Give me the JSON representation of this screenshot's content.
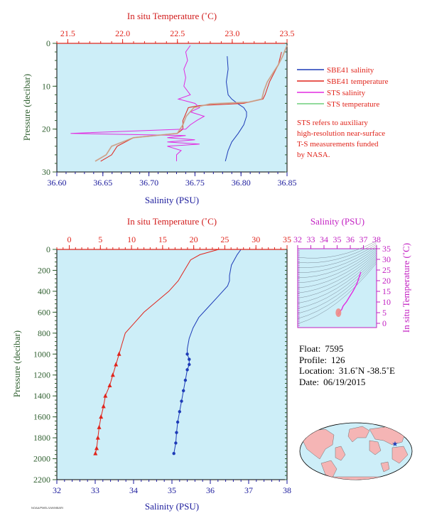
{
  "colors": {
    "plot_bg": "#cdeef8",
    "red": "#e0241b",
    "blue": "#1d3bb7",
    "magenta": "#e22be0",
    "green": "#6fcf7c",
    "pink": "#f08a86",
    "dark_blue_text": "#1a1a9c",
    "dark_red_text": "#d11b1b",
    "green_text": "#2f5f2f"
  },
  "chart_data": [
    {
      "id": "top",
      "type": "line",
      "title": "In situ Temperature (˚C)",
      "xlabel": "Salinity (PSU)",
      "ylabel": "Pressure (decibar)",
      "xlim_salinity": [
        36.6,
        36.85
      ],
      "xlim_temperature": [
        21.4,
        23.5
      ],
      "ylim": [
        30,
        0
      ],
      "sal_ticks": [
        "36.60",
        "36.65",
        "36.70",
        "36.75",
        "36.80",
        "36.85"
      ],
      "temp_ticks": [
        "21.5",
        "22.0",
        "22.5",
        "23.0",
        "23.5"
      ],
      "p_ticks": [
        "0",
        "10",
        "20",
        "30"
      ],
      "legend": [
        {
          "label": "SBE41 salinity",
          "color": "#1d3bb7"
        },
        {
          "label": "SBE41 temperature",
          "color": "#e0241b"
        },
        {
          "label": "STS salinity",
          "color": "#e22be0"
        },
        {
          "label": "STS temperature",
          "color": "#6fcf7c"
        }
      ],
      "note": [
        "STS refers to auxiliary",
        "high-resolution near-surface",
        "T-S measurements funded",
        "by NASA."
      ],
      "series": [
        {
          "name": "SBE41 salinity",
          "axis": "salinity",
          "points": [
            [
              36.785,
              3
            ],
            [
              36.786,
              6
            ],
            [
              36.784,
              9
            ],
            [
              36.786,
              12
            ],
            [
              36.79,
              13
            ],
            [
              36.796,
              14
            ],
            [
              36.803,
              15
            ],
            [
              36.806,
              16
            ],
            [
              36.806,
              17
            ],
            [
              36.803,
              19
            ],
            [
              36.8,
              20
            ],
            [
              36.797,
              21
            ],
            [
              36.79,
              23
            ],
            [
              36.786,
              25
            ],
            [
              36.783,
              27.5
            ]
          ]
        },
        {
          "name": "SBE41 temperature",
          "axis": "temperature",
          "points": [
            [
              23.45,
              2
            ],
            [
              23.42,
              5
            ],
            [
              23.38,
              7
            ],
            [
              23.34,
              9
            ],
            [
              23.3,
              12
            ],
            [
              23.28,
              13
            ],
            [
              23.1,
              14
            ],
            [
              22.7,
              14.5
            ],
            [
              22.6,
              15
            ],
            [
              22.55,
              18
            ],
            [
              22.55,
              20
            ],
            [
              22.5,
              21
            ],
            [
              22.1,
              22
            ],
            [
              21.95,
              24
            ],
            [
              21.9,
              26
            ],
            [
              21.8,
              27.5
            ]
          ]
        },
        {
          "name": "STS salinity",
          "axis": "salinity",
          "points": [
            [
              36.745,
              0.5
            ],
            [
              36.74,
              2
            ],
            [
              36.742,
              4
            ],
            [
              36.738,
              6
            ],
            [
              36.74,
              8
            ],
            [
              36.738,
              10
            ],
            [
              36.745,
              12
            ],
            [
              36.732,
              13
            ],
            [
              36.75,
              14
            ],
            [
              36.755,
              15
            ],
            [
              36.745,
              16
            ],
            [
              36.76,
              17
            ],
            [
              36.752,
              18
            ],
            [
              36.745,
              19
            ],
            [
              36.74,
              20
            ],
            [
              36.615,
              21
            ],
            [
              36.74,
              21.5
            ],
            [
              36.72,
              22
            ],
            [
              36.75,
              22.5
            ],
            [
              36.72,
              23
            ],
            [
              36.755,
              23.5
            ],
            [
              36.72,
              24
            ],
            [
              36.735,
              25
            ],
            [
              36.73,
              26
            ],
            [
              36.73,
              27.5
            ]
          ]
        },
        {
          "name": "STS temperature",
          "axis": "temperature",
          "points": [
            [
              23.5,
              0.5
            ],
            [
              23.46,
              3
            ],
            [
              23.42,
              5
            ],
            [
              23.37,
              7
            ],
            [
              23.32,
              9
            ],
            [
              23.29,
              11
            ],
            [
              23.27,
              13
            ],
            [
              23.15,
              13.7
            ],
            [
              22.8,
              14.1
            ],
            [
              22.65,
              15
            ],
            [
              22.58,
              17
            ],
            [
              22.55,
              19
            ],
            [
              22.5,
              21
            ],
            [
              22.1,
              22
            ],
            [
              21.9,
              24
            ],
            [
              21.85,
              26
            ],
            [
              21.75,
              27.5
            ]
          ]
        }
      ]
    },
    {
      "id": "bottom",
      "type": "line",
      "title": "In situ Temperature (˚C)",
      "xlabel": "Salinity (PSU)",
      "ylabel": "Pressure (decibar)",
      "xlim_salinity": [
        32,
        38
      ],
      "xlim_temperature": [
        -2,
        35
      ],
      "ylim": [
        2200,
        0
      ],
      "sal_ticks": [
        "32",
        "33",
        "34",
        "35",
        "36",
        "37",
        "38"
      ],
      "temp_ticks": [
        "0",
        "5",
        "10",
        "15",
        "20",
        "25",
        "30",
        "35"
      ],
      "p_ticks": [
        "0",
        "200",
        "400",
        "600",
        "800",
        "1000",
        "1200",
        "1400",
        "1600",
        "1800",
        "2000",
        "2200"
      ],
      "series": [
        {
          "name": "SBE41 salinity",
          "axis": "salinity",
          "points": [
            [
              36.8,
              0
            ],
            [
              36.7,
              50
            ],
            [
              36.55,
              150
            ],
            [
              36.5,
              250
            ],
            [
              36.5,
              300
            ],
            [
              36.45,
              350
            ],
            [
              36.2,
              450
            ],
            [
              35.95,
              550
            ],
            [
              35.7,
              650
            ],
            [
              35.55,
              750
            ],
            [
              35.45,
              850
            ],
            [
              35.4,
              950
            ],
            [
              35.4,
              1000
            ],
            [
              35.45,
              1050
            ],
            [
              35.45,
              1100
            ],
            [
              35.4,
              1150
            ],
            [
              35.35,
              1250
            ],
            [
              35.3,
              1350
            ],
            [
              35.25,
              1450
            ],
            [
              35.2,
              1550
            ],
            [
              35.15,
              1650
            ],
            [
              35.12,
              1750
            ],
            [
              35.1,
              1850
            ],
            [
              35.05,
              1950
            ]
          ],
          "markers_from": 1000
        },
        {
          "name": "SBE41 temperature",
          "axis": "temperature",
          "points": [
            [
              24,
              0
            ],
            [
              21,
              50
            ],
            [
              19.5,
              100
            ],
            [
              18.5,
              200
            ],
            [
              17.5,
              300
            ],
            [
              16,
              400
            ],
            [
              14,
              500
            ],
            [
              12,
              600
            ],
            [
              10.5,
              700
            ],
            [
              9,
              800
            ],
            [
              8.5,
              900
            ],
            [
              8,
              1000
            ],
            [
              7.5,
              1100
            ],
            [
              7,
              1200
            ],
            [
              6.5,
              1300
            ],
            [
              5.8,
              1400
            ],
            [
              5.5,
              1500
            ],
            [
              5.1,
              1600
            ],
            [
              4.8,
              1700
            ],
            [
              4.6,
              1800
            ],
            [
              4.4,
              1900
            ],
            [
              4.2,
              1950
            ]
          ],
          "markers_from": 1000
        }
      ]
    },
    {
      "id": "ts-inset",
      "type": "line",
      "title": "Salinity (PSU)",
      "ylabel": "In situ Temperature (˚C)",
      "xlim": [
        32,
        38
      ],
      "ylim": [
        -2,
        35
      ],
      "x_ticks": [
        "32",
        "33",
        "34",
        "35",
        "36",
        "37",
        "38"
      ],
      "y_ticks": [
        "0",
        "5",
        "10",
        "15",
        "20",
        "25",
        "30",
        "35"
      ],
      "series": [
        {
          "name": "T-S",
          "points": [
            [
              36.8,
              24
            ],
            [
              36.5,
              18.5
            ],
            [
              36.2,
              15
            ],
            [
              35.9,
              12
            ],
            [
              35.7,
              10
            ],
            [
              35.5,
              8.5
            ],
            [
              35.45,
              8
            ],
            [
              35.35,
              6.5
            ],
            [
              35.2,
              5.5
            ],
            [
              35.1,
              4.5
            ],
            [
              35.05,
              4.2
            ]
          ]
        }
      ]
    }
  ],
  "info": {
    "float_label": "Float:",
    "float_value": "7595",
    "profile_label": "Profile:",
    "profile_value": "126",
    "location_label": "Location:",
    "location_value": "31.6˚N  -38.5˚E",
    "date_label": "Date:",
    "date_value": "06/19/2015"
  },
  "map": {
    "marker_lat": 31.6,
    "marker_lon": -38.5,
    "marker_color": "#1d3bb7",
    "land_color": "#f5b5b5",
    "ocean_color": "#cdeef8"
  },
  "footer": "NOAA/PMEL/UW/MBARI"
}
